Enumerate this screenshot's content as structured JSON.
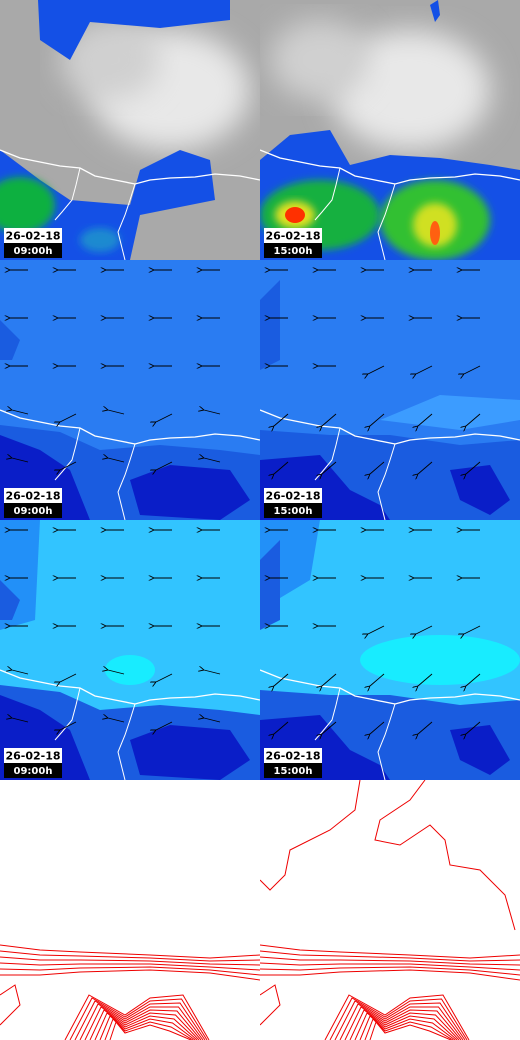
{
  "panels": [
    {
      "date": "26-02-18",
      "time": "09:00h"
    },
    {
      "date": "26-02-18",
      "time": "15:00h"
    },
    {
      "date": "26-02-18",
      "time": "09:00h"
    },
    {
      "date": "26-02-18",
      "time": "15:00h"
    },
    {
      "date": "26-02-18",
      "time": "09:00h"
    },
    {
      "date": "26-02-18",
      "time": "15:00h"
    }
  ]
}
